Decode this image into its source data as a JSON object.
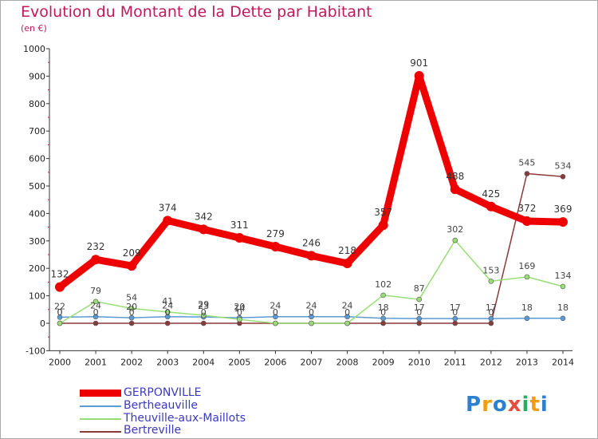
{
  "title": "Evolution du Montant de la Dette par Habitant",
  "unit_label": "(en €)",
  "logo_text": "Proxiti",
  "chart_data": {
    "type": "line",
    "title": "Evolution du Montant de la Dette par Habitant",
    "ylabel": "(en €)",
    "ylim": [
      -100,
      1000
    ],
    "yticks": [
      -100,
      0,
      100,
      200,
      300,
      400,
      500,
      600,
      700,
      800,
      900,
      1000
    ],
    "grid": false,
    "legend_position": "bottom-left",
    "x": [
      "2000",
      "2001",
      "2002",
      "2003",
      "2004",
      "2005",
      "2006",
      "2007",
      "2008",
      "2009",
      "2010",
      "2011",
      "2012",
      "2013",
      "2014"
    ],
    "series": [
      {
        "name": "GERPONVILLE",
        "color": "#ee0000",
        "values": [
          132,
          232,
          209,
          374,
          342,
          311,
          279,
          246,
          218,
          357,
          901,
          488,
          425,
          372,
          369
        ],
        "labels": [
          "132",
          "232",
          "209",
          "374",
          "342",
          "311",
          "279",
          "246",
          "218",
          "357",
          "901",
          "488",
          "425",
          "372",
          "369"
        ]
      },
      {
        "name": "Bertheauville",
        "color": "#5b9bd5",
        "values": [
          22,
          24,
          20,
          24,
          23,
          20,
          24,
          24,
          24,
          18,
          17,
          17,
          17,
          18,
          18
        ],
        "labels": [
          "22",
          "24",
          "20",
          "24",
          "23",
          "20",
          "24",
          "24",
          "24",
          "18",
          "17",
          "17",
          "17",
          "18",
          "18"
        ]
      },
      {
        "name": "Theuville-aux-Maillots",
        "color": "#99dd77",
        "values": [
          0,
          79,
          54,
          41,
          29,
          14,
          0,
          0,
          0,
          102,
          87,
          302,
          153,
          169,
          134
        ],
        "labels": [
          "0",
          "79",
          "54",
          "41",
          "29",
          "14",
          "",
          "",
          "",
          "102",
          "87",
          "302",
          "153",
          "169",
          "134"
        ]
      },
      {
        "name": "Bertreville",
        "color": "#8b3a3a",
        "values": [
          0,
          0,
          0,
          0,
          0,
          0,
          0,
          0,
          0,
          0,
          0,
          0,
          0,
          545,
          534
        ],
        "labels": [
          "0",
          "0",
          "0",
          "0",
          "0",
          "0",
          "0",
          "0",
          "0",
          "0",
          "0",
          "0",
          "0",
          "545",
          "534"
        ]
      }
    ]
  }
}
